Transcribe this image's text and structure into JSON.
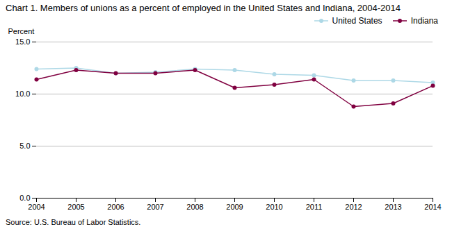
{
  "chart_data": {
    "type": "line",
    "title": "Chart 1. Members of unions as a percent of employed in the United States and Indiana, 2004-2014",
    "y_label": "Percent",
    "annotations": [
      "Source: U.S. Bureau of Labor Statistics."
    ],
    "x": [
      2004,
      2005,
      2006,
      2007,
      2008,
      2009,
      2010,
      2011,
      2012,
      2013,
      2014
    ],
    "series": [
      {
        "name": "United States",
        "color": "#ADD8E6",
        "marker": "circle",
        "values": [
          12.4,
          12.5,
          12.0,
          12.1,
          12.4,
          12.3,
          11.9,
          11.8,
          11.3,
          11.3,
          11.1
        ]
      },
      {
        "name": "Indiana",
        "color": "#800040",
        "marker": "circle",
        "values": [
          11.4,
          12.3,
          12.0,
          12.0,
          12.3,
          10.6,
          10.9,
          11.4,
          8.8,
          9.1,
          10.8
        ]
      }
    ],
    "xlim": [
      2004,
      2014
    ],
    "xticks": [
      2004,
      2005,
      2006,
      2007,
      2008,
      2009,
      2010,
      2011,
      2012,
      2013,
      2014
    ],
    "ylim": [
      0.0,
      15.0
    ],
    "yticks": [
      {
        "value": 0,
        "label": "0.0"
      },
      {
        "value": 5,
        "label": "5.0"
      },
      {
        "value": 10,
        "label": "10.0"
      },
      {
        "value": 15,
        "label": "15.0"
      }
    ],
    "grid": true,
    "legend": "upper right"
  }
}
